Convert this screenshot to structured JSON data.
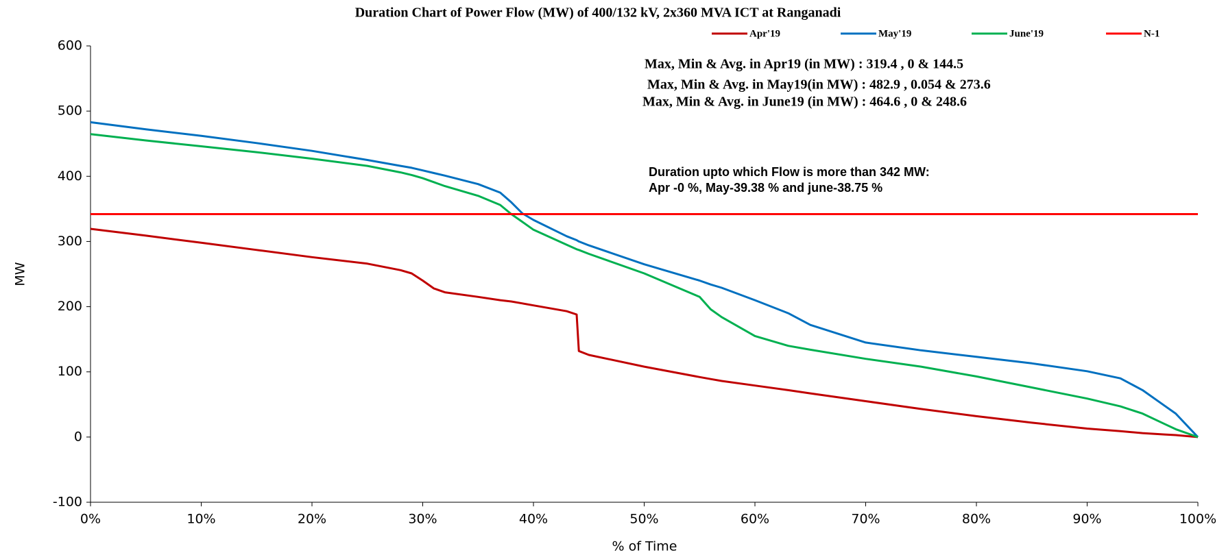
{
  "chart_data": {
    "type": "line",
    "title": "Duration Chart of Power Flow (MW) of 400/132 kV, 2x360 MVA ICT at Ranganadi",
    "xlabel": "% of Time",
    "ylabel": "MW",
    "annotations": [
      "Max, Min & Avg. in Apr19  (in MW)  : 319.4  , 0   & 144.5",
      "Max, Min & Avg. in May19(in MW)  : 482.9  , 0.054   & 273.6",
      "Max, Min & Avg. in June19 (in MW)  : 464.6  , 0   & 248.6",
      "Duration upto which Flow is more than  342  MW:",
      "Apr -0 %, May-39.38  % and  june-38.75 %"
    ],
    "x": [
      0,
      5,
      10,
      15,
      20,
      25,
      28,
      29,
      30,
      31,
      32,
      35,
      37,
      38,
      39,
      40,
      43,
      43.9,
      44.1,
      45,
      50,
      55,
      56,
      57,
      60,
      63,
      65,
      70,
      75,
      80,
      85,
      90,
      93,
      95,
      97,
      98,
      100
    ],
    "series": [
      {
        "name": "Apr'19",
        "color": "#c00000",
        "values": [
          319.4,
          309,
          298,
          287,
          276,
          266,
          256,
          251,
          240,
          228,
          222,
          215,
          210,
          208,
          205,
          202,
          193,
          188,
          132,
          126,
          108,
          92,
          89,
          86,
          79,
          72,
          67,
          55,
          43,
          32,
          22,
          13,
          9,
          6,
          4,
          3,
          0
        ]
      },
      {
        "name": "May'19",
        "color": "#0070c0",
        "values": [
          482.9,
          472,
          462,
          451,
          439,
          425,
          416,
          413,
          409,
          405,
          401,
          388,
          375,
          360,
          343,
          333,
          308,
          302,
          300,
          294,
          265,
          240,
          234,
          229,
          210,
          190,
          172,
          145,
          133,
          123,
          113,
          101,
          90,
          72,
          48,
          36,
          0
        ]
      },
      {
        "name": "June'19",
        "color": "#00b050",
        "values": [
          464.6,
          455,
          446,
          437,
          427,
          416,
          406,
          402,
          397,
          391,
          385,
          370,
          356,
          342,
          330,
          318,
          295,
          288,
          287,
          281,
          251,
          215,
          196,
          184,
          155,
          140,
          134,
          120,
          108,
          93,
          76,
          59,
          47,
          36,
          20,
          12,
          0
        ]
      },
      {
        "name": "N-1",
        "color": "#ff0000",
        "values": [
          342,
          342,
          342,
          342,
          342,
          342,
          342,
          342,
          342,
          342,
          342,
          342,
          342,
          342,
          342,
          342,
          342,
          342,
          342,
          342,
          342,
          342,
          342,
          342,
          342,
          342,
          342,
          342,
          342,
          342,
          342,
          342,
          342,
          342,
          342,
          342,
          342
        ]
      }
    ],
    "xlim": [
      0,
      100
    ],
    "xticks": [
      {
        "value": 0,
        "label": "0%"
      },
      {
        "value": 10,
        "label": "10%"
      },
      {
        "value": 20,
        "label": "20%"
      },
      {
        "value": 30,
        "label": "30%"
      },
      {
        "value": 40,
        "label": "40%"
      },
      {
        "value": 50,
        "label": "50%"
      },
      {
        "value": 60,
        "label": "60%"
      },
      {
        "value": 70,
        "label": "70%"
      },
      {
        "value": 80,
        "label": "80%"
      },
      {
        "value": 90,
        "label": "90%"
      },
      {
        "value": 100,
        "label": "100%"
      }
    ],
    "ylim": [
      -100,
      600
    ],
    "yticks": [
      -100,
      0,
      100,
      200,
      300,
      400,
      500,
      600
    ],
    "grid": false,
    "legend": "top"
  }
}
